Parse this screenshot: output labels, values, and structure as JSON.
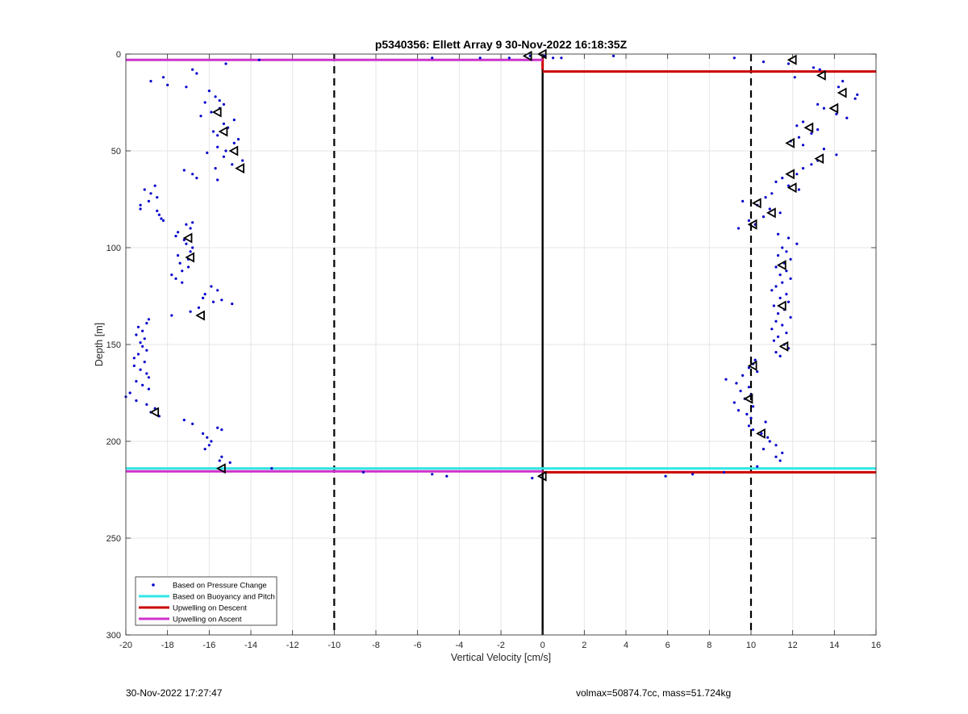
{
  "footer": {
    "left": "30-Nov-2022 17:27:47",
    "right": "volmax=50874.7cc, mass=51.724kg"
  },
  "chart_data": {
    "type": "scatter",
    "title": "p5340356: Ellett Array 9 30-Nov-2022 16:18:35Z",
    "xlabel": "Vertical Velocity [cm/s]",
    "ylabel": "Depth [m]",
    "xlim": [
      -20,
      16
    ],
    "ylim": [
      300,
      0
    ],
    "y_reversed": true,
    "grid": true,
    "xticks": [
      "-20",
      "-18",
      "-16",
      "-14",
      "-12",
      "-10",
      "-8",
      "-6",
      "-4",
      "-2",
      "0",
      "2",
      "4",
      "6",
      "8",
      "10",
      "12",
      "14",
      "16"
    ],
    "yticks": [
      "0",
      "50",
      "100",
      "150",
      "200",
      "250",
      "300"
    ],
    "legend_position": "bottom-left",
    "legend": [
      {
        "label": "Based on Pressure Change",
        "color": "#0000cc",
        "style": "dot"
      },
      {
        "label": "Based on Buoyancy and Pitch",
        "color": "#33e6e6",
        "style": "line"
      },
      {
        "label": "Upwelling on Descent",
        "color": "#cc0000",
        "style": "line"
      },
      {
        "label": "Upwelling on Ascent",
        "color": "#cc33cc",
        "style": "line"
      }
    ],
    "reference_lines": [
      {
        "x": -10,
        "style": "dashed",
        "color": "#000000"
      },
      {
        "x": 0,
        "style": "solid",
        "color": "#000000"
      },
      {
        "x": 10,
        "style": "dashed",
        "color": "#000000"
      }
    ],
    "series": [
      {
        "name": "Based on Pressure Change",
        "color": "#0000cc",
        "marker": "dot",
        "points": [
          [
            -15.2,
            5
          ],
          [
            -16.8,
            8
          ],
          [
            -16.6,
            10
          ],
          [
            -18.2,
            12
          ],
          [
            -18.8,
            14
          ],
          [
            -18.0,
            16
          ],
          [
            -17.1,
            17
          ],
          [
            -16.0,
            19
          ],
          [
            -15.7,
            22
          ],
          [
            -15.5,
            24
          ],
          [
            -16.2,
            25
          ],
          [
            -15.3,
            26
          ],
          [
            -15.5,
            28
          ],
          [
            -15.9,
            30
          ],
          [
            -16.4,
            32
          ],
          [
            -14.8,
            34
          ],
          [
            -15.3,
            36
          ],
          [
            -15.1,
            38
          ],
          [
            -15.8,
            40
          ],
          [
            -15.6,
            42
          ],
          [
            -14.6,
            44
          ],
          [
            -14.8,
            46
          ],
          [
            -15.6,
            48
          ],
          [
            -15.2,
            50
          ],
          [
            -16.1,
            51
          ],
          [
            -15.3,
            53
          ],
          [
            -14.4,
            55
          ],
          [
            -14.9,
            57
          ],
          [
            -15.7,
            59
          ],
          [
            -17.2,
            60
          ],
          [
            -16.8,
            62
          ],
          [
            -16.6,
            64
          ],
          [
            -15.6,
            65
          ],
          [
            -18.6,
            68
          ],
          [
            -19.1,
            70
          ],
          [
            -18.8,
            72
          ],
          [
            -18.5,
            74
          ],
          [
            -18.9,
            76
          ],
          [
            -19.3,
            78
          ],
          [
            -19.3,
            80
          ],
          [
            -18.5,
            81
          ],
          [
            -18.4,
            83
          ],
          [
            -18.3,
            85
          ],
          [
            -18.2,
            86
          ],
          [
            -16.8,
            87
          ],
          [
            -17.1,
            88
          ],
          [
            -16.9,
            90
          ],
          [
            -17.5,
            92
          ],
          [
            -17.6,
            94
          ],
          [
            -17.2,
            96
          ],
          [
            -17.1,
            98
          ],
          [
            -16.8,
            100
          ],
          [
            -16.9,
            102
          ],
          [
            -17.5,
            104
          ],
          [
            -17.0,
            106
          ],
          [
            -17.4,
            108
          ],
          [
            -17.0,
            110
          ],
          [
            -17.3,
            112
          ],
          [
            -17.8,
            114
          ],
          [
            -17.6,
            116
          ],
          [
            -17.3,
            118
          ],
          [
            -15.9,
            120
          ],
          [
            -15.6,
            122
          ],
          [
            -16.2,
            124
          ],
          [
            -16.3,
            126
          ],
          [
            -15.4,
            127
          ],
          [
            -15.8,
            128
          ],
          [
            -14.9,
            129
          ],
          [
            -16.5,
            131
          ],
          [
            -16.9,
            133
          ],
          [
            -17.8,
            135
          ],
          [
            -18.9,
            137
          ],
          [
            -19.0,
            139
          ],
          [
            -19.4,
            141
          ],
          [
            -19.2,
            143
          ],
          [
            -19.5,
            145
          ],
          [
            -19.1,
            147
          ],
          [
            -19.3,
            149
          ],
          [
            -19.2,
            151
          ],
          [
            -19.0,
            153
          ],
          [
            -19.4,
            155
          ],
          [
            -19.6,
            157
          ],
          [
            -19.1,
            159
          ],
          [
            -19.6,
            161
          ],
          [
            -19.3,
            163
          ],
          [
            -19.0,
            165
          ],
          [
            -18.9,
            167
          ],
          [
            -19.5,
            169
          ],
          [
            -19.2,
            171
          ],
          [
            -18.9,
            173
          ],
          [
            -19.8,
            175
          ],
          [
            -20.0,
            177
          ],
          [
            -19.5,
            179
          ],
          [
            -19.0,
            181
          ],
          [
            -18.6,
            183
          ],
          [
            -18.8,
            185
          ],
          [
            -18.4,
            187
          ],
          [
            -17.2,
            189
          ],
          [
            -16.8,
            191
          ],
          [
            -15.6,
            193
          ],
          [
            -15.4,
            194
          ],
          [
            -16.3,
            196
          ],
          [
            -16.1,
            198
          ],
          [
            -15.9,
            200
          ],
          [
            -16.0,
            202
          ],
          [
            -16.2,
            204
          ],
          [
            -15.4,
            208
          ],
          [
            -15.5,
            210
          ],
          [
            -15.0,
            211
          ],
          [
            -13.0,
            214
          ],
          [
            -13.6,
            3
          ],
          [
            -5.3,
            2
          ],
          [
            -3.0,
            2
          ],
          [
            -1.6,
            2
          ],
          [
            -0.6,
            1
          ],
          [
            0.1,
            1
          ],
          [
            0.5,
            2
          ],
          [
            0.9,
            2
          ],
          [
            3.4,
            1
          ],
          [
            -8.6,
            216
          ],
          [
            -5.3,
            217
          ],
          [
            -4.6,
            218
          ],
          [
            -0.5,
            219
          ],
          [
            5.9,
            218
          ],
          [
            7.2,
            217
          ],
          [
            8.7,
            216
          ],
          [
            9.2,
            2
          ],
          [
            10.6,
            4
          ],
          [
            11.8,
            5
          ],
          [
            13.0,
            7
          ],
          [
            13.3,
            8
          ],
          [
            12.1,
            12
          ],
          [
            14.4,
            14
          ],
          [
            14.2,
            17
          ],
          [
            15.1,
            21
          ],
          [
            15.0,
            23
          ],
          [
            13.2,
            26
          ],
          [
            13.5,
            28
          ],
          [
            14.1,
            31
          ],
          [
            14.6,
            33
          ],
          [
            12.5,
            35
          ],
          [
            12.2,
            37
          ],
          [
            13.2,
            39
          ],
          [
            12.9,
            41
          ],
          [
            12.3,
            43
          ],
          [
            11.9,
            45
          ],
          [
            12.5,
            47
          ],
          [
            13.5,
            49
          ],
          [
            14.1,
            52
          ],
          [
            13.2,
            55
          ],
          [
            12.9,
            57
          ],
          [
            12.5,
            59
          ],
          [
            12.2,
            62
          ],
          [
            11.5,
            64
          ],
          [
            11.2,
            66
          ],
          [
            11.8,
            68
          ],
          [
            12.3,
            70
          ],
          [
            11.0,
            72
          ],
          [
            10.7,
            74
          ],
          [
            9.6,
            76
          ],
          [
            10.3,
            78
          ],
          [
            10.9,
            80
          ],
          [
            11.4,
            82
          ],
          [
            10.6,
            84
          ],
          [
            9.9,
            86
          ],
          [
            10.2,
            88
          ],
          [
            9.4,
            90
          ],
          [
            11.3,
            93
          ],
          [
            11.8,
            95
          ],
          [
            12.2,
            98
          ],
          [
            11.5,
            100
          ],
          [
            11.7,
            102
          ],
          [
            11.3,
            104
          ],
          [
            11.9,
            106
          ],
          [
            11.6,
            108
          ],
          [
            11.2,
            110
          ],
          [
            11.7,
            112
          ],
          [
            11.4,
            114
          ],
          [
            11.9,
            116
          ],
          [
            11.5,
            118
          ],
          [
            11.2,
            120
          ],
          [
            11.0,
            122
          ],
          [
            11.7,
            124
          ],
          [
            11.4,
            126
          ],
          [
            11.8,
            128
          ],
          [
            11.1,
            130
          ],
          [
            11.6,
            132
          ],
          [
            11.3,
            134
          ],
          [
            11.9,
            136
          ],
          [
            11.2,
            138
          ],
          [
            11.5,
            140
          ],
          [
            11.0,
            142
          ],
          [
            11.7,
            144
          ],
          [
            11.3,
            146
          ],
          [
            11.1,
            148
          ],
          [
            11.6,
            150
          ],
          [
            11.8,
            152
          ],
          [
            11.2,
            154
          ],
          [
            11.4,
            156
          ],
          [
            10.2,
            158
          ],
          [
            10.1,
            160
          ],
          [
            9.9,
            162
          ],
          [
            10.3,
            164
          ],
          [
            9.6,
            166
          ],
          [
            8.8,
            168
          ],
          [
            9.3,
            170
          ],
          [
            9.9,
            172
          ],
          [
            9.5,
            174
          ],
          [
            10.0,
            176
          ],
          [
            9.7,
            178
          ],
          [
            9.2,
            180
          ],
          [
            10.1,
            182
          ],
          [
            9.4,
            184
          ],
          [
            9.8,
            186
          ],
          [
            10.0,
            188
          ],
          [
            10.7,
            190
          ],
          [
            9.9,
            192
          ],
          [
            10.1,
            194
          ],
          [
            10.5,
            196
          ],
          [
            10.8,
            198
          ],
          [
            10.9,
            200
          ],
          [
            11.2,
            202
          ],
          [
            10.6,
            204
          ],
          [
            11.5,
            206
          ],
          [
            11.2,
            208
          ],
          [
            11.4,
            210
          ],
          [
            10.3,
            213
          ]
        ]
      },
      {
        "name": "Based on Buoyancy and Pitch",
        "color": "#33e6e6",
        "segments": [
          {
            "x": [
              -20,
              16
            ],
            "y": 214
          }
        ]
      },
      {
        "name": "Upwelling on Descent",
        "color": "#cc0000",
        "segments": [
          {
            "x": [
              0,
              16
            ],
            "y": 9
          },
          {
            "x": [
              0,
              16
            ],
            "y": 216
          },
          {
            "x": [
              0,
              0
            ],
            "y": [
              2,
              8
            ]
          }
        ]
      },
      {
        "name": "Upwelling on Ascent",
        "color": "#cc33cc",
        "segments": [
          {
            "x": [
              -20,
              0
            ],
            "y": 3
          },
          {
            "x": [
              -20,
              0
            ],
            "y": 215.5
          }
        ]
      },
      {
        "name": "triangle markers",
        "color": "#000000",
        "marker": "triangle-left",
        "points": [
          [
            -15.6,
            30
          ],
          [
            -15.3,
            40
          ],
          [
            -14.8,
            50
          ],
          [
            -14.5,
            59
          ],
          [
            -17.0,
            95
          ],
          [
            -16.9,
            105
          ],
          [
            -16.4,
            135
          ],
          [
            -18.6,
            185
          ],
          [
            -15.4,
            214
          ],
          [
            -0.7,
            1
          ],
          [
            0,
            0
          ],
          [
            0,
            218
          ],
          [
            12.0,
            3
          ],
          [
            13.4,
            11
          ],
          [
            14.4,
            20
          ],
          [
            14.0,
            28
          ],
          [
            12.8,
            38
          ],
          [
            11.9,
            46
          ],
          [
            13.3,
            54
          ],
          [
            11.9,
            62
          ],
          [
            12.0,
            69
          ],
          [
            10.3,
            77
          ],
          [
            11.0,
            82
          ],
          [
            10.1,
            88
          ],
          [
            11.5,
            109
          ],
          [
            11.5,
            130
          ],
          [
            11.6,
            151
          ],
          [
            10.1,
            161
          ],
          [
            9.9,
            178
          ],
          [
            10.5,
            196
          ]
        ]
      }
    ]
  }
}
